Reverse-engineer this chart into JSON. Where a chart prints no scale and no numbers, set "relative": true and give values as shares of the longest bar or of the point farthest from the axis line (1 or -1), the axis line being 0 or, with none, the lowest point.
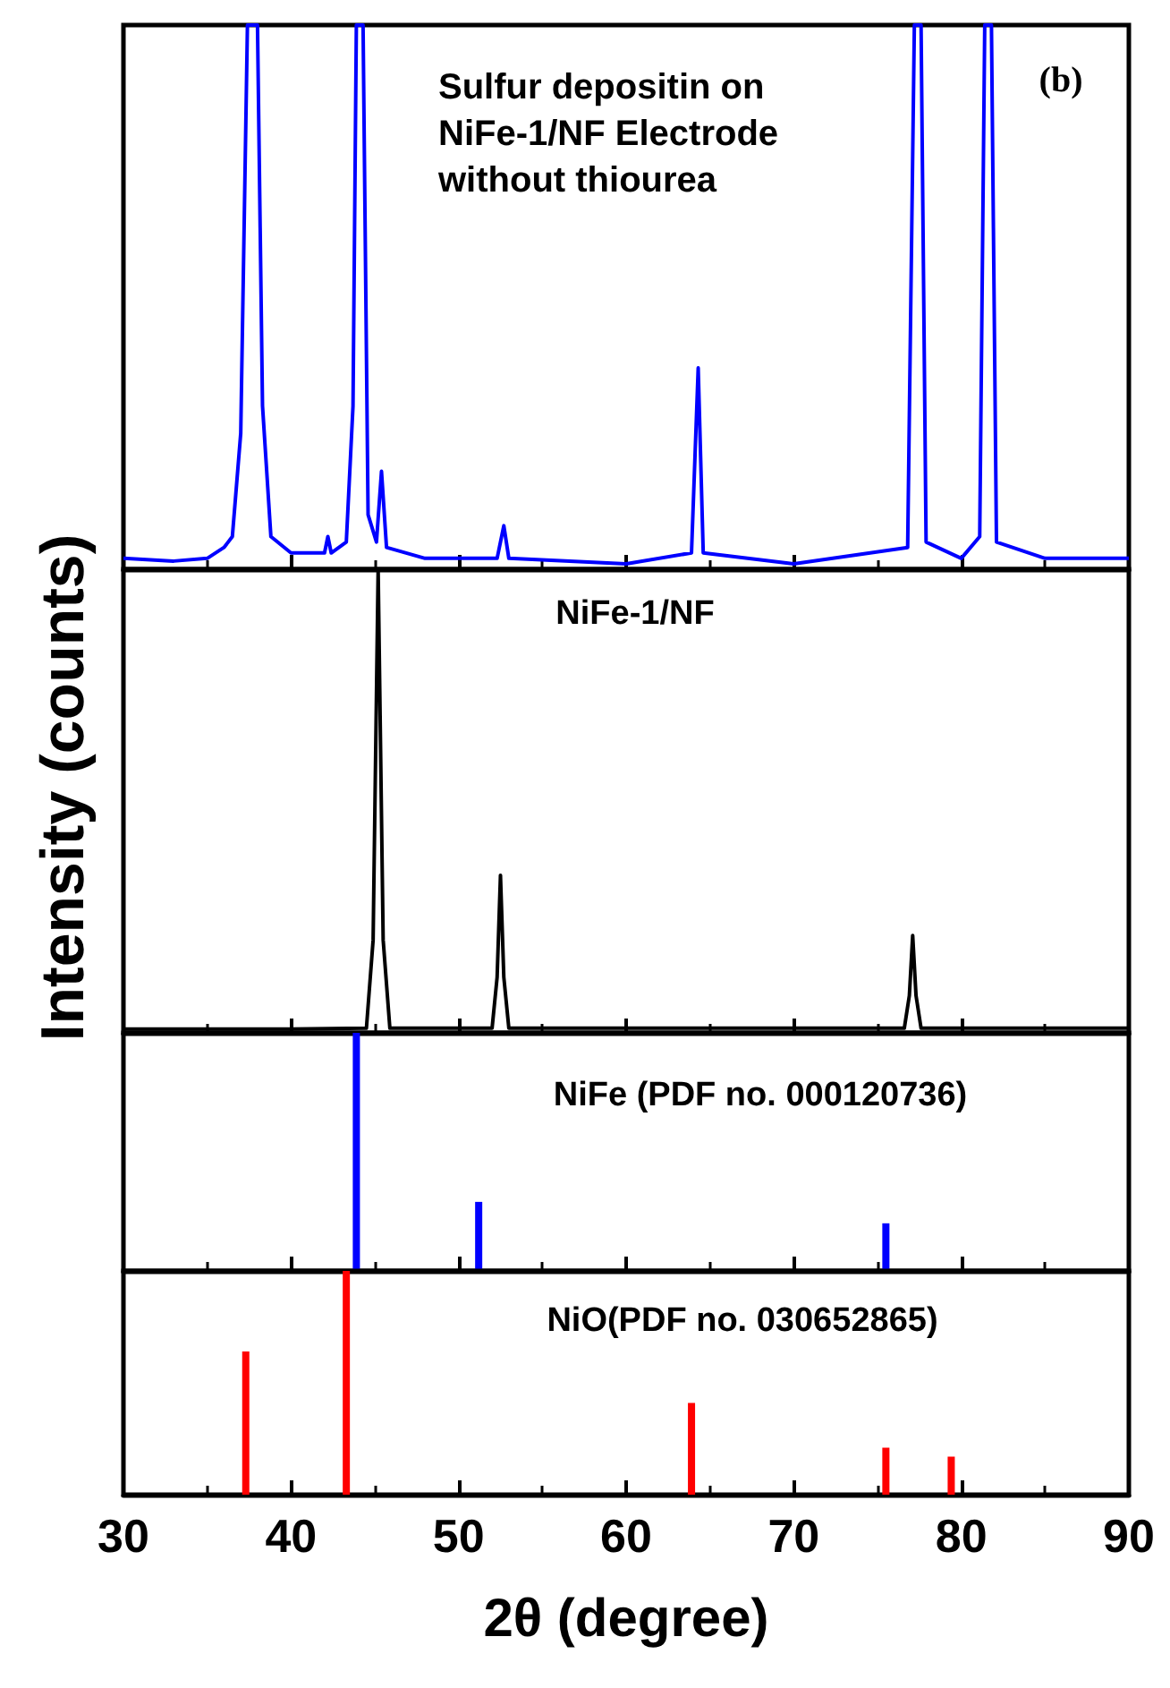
{
  "chart_data": [
    {
      "type": "line",
      "relative": true,
      "ylabel": "Intensity (counts)",
      "annotations": [
        "Sulfur depositin on NiFe-1/NF Electrode without thiourea",
        "(b)"
      ],
      "xlim": [
        30,
        90
      ],
      "xticks": [
        30,
        40,
        50,
        60,
        70,
        80,
        90
      ],
      "tick_labels": false,
      "series": [
        {
          "color": "#0000ff",
          "x": [
            30,
            33,
            35,
            36,
            36.5,
            37.0,
            37.4,
            38.0,
            38.3,
            38.8,
            40,
            42,
            42.2,
            42.4,
            43.3,
            43.7,
            43.9,
            44.3,
            44.6,
            45.1,
            45.4,
            45.7,
            48,
            52.3,
            52.7,
            53.0,
            60,
            63.9,
            64.3,
            64.6,
            70,
            76.8,
            77.2,
            77.6,
            77.9,
            80,
            81.1,
            81.4,
            81.8,
            82.1,
            85,
            90
          ],
          "values": [
            0.02,
            0.015,
            0.02,
            0.04,
            0.06,
            0.25,
            1,
            1,
            0.3,
            0.06,
            0.03,
            0.03,
            0.06,
            0.03,
            0.05,
            0.3,
            1,
            1,
            0.1,
            0.05,
            0.18,
            0.04,
            0.02,
            0.02,
            0.08,
            0.02,
            0.01,
            0.03,
            0.37,
            0.03,
            0.01,
            0.04,
            1,
            1,
            0.05,
            0.02,
            0.06,
            1,
            1,
            0.05,
            0.02,
            0.02
          ]
        }
      ]
    },
    {
      "type": "line",
      "relative": true,
      "annotations": [
        "NiFe-1/NF"
      ],
      "xlim": [
        30,
        90
      ],
      "xticks": [
        30,
        40,
        50,
        60,
        70,
        80,
        90
      ],
      "tick_labels": false,
      "series": [
        {
          "color": "#000000",
          "x": [
            30,
            40,
            44.5,
            44.9,
            45.2,
            45.5,
            45.9,
            52.0,
            52.3,
            52.5,
            52.7,
            53.0,
            76.6,
            76.9,
            77.1,
            77.3,
            77.6,
            90
          ],
          "values": [
            0.008,
            0.008,
            0.01,
            0.2,
            1,
            0.2,
            0.01,
            0.01,
            0.12,
            0.34,
            0.12,
            0.01,
            0.01,
            0.08,
            0.21,
            0.08,
            0.01,
            0.01
          ]
        }
      ]
    },
    {
      "type": "bar",
      "relative": true,
      "annotations": [
        "NiFe (PDF no. 000120736)"
      ],
      "xlim": [
        30,
        90
      ],
      "xticks": [
        30,
        40,
        50,
        60,
        70,
        80,
        90
      ],
      "tick_labels": false,
      "series": [
        {
          "color": "#0000ff",
          "x": [
            43.9,
            51.2,
            75.5
          ],
          "values": [
            1,
            0.29,
            0.2
          ]
        }
      ]
    },
    {
      "type": "bar",
      "relative": true,
      "annotations": [
        "NiO(PDF no. 030652865)"
      ],
      "xlabel": "2θ (degree)",
      "xlim": [
        30,
        90
      ],
      "xticks": [
        30,
        40,
        50,
        60,
        70,
        80,
        90
      ],
      "tick_labels": "x",
      "series": [
        {
          "color": "#ff0000",
          "x": [
            37.3,
            43.3,
            63.9,
            75.5,
            79.4
          ],
          "values": [
            0.64,
            1,
            0.41,
            0.21,
            0.17
          ]
        }
      ]
    }
  ]
}
